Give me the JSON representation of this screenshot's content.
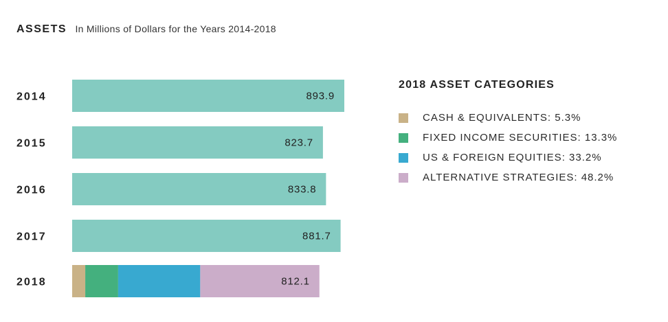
{
  "chart_data": {
    "type": "bar",
    "orientation": "horizontal",
    "title": "ASSETS",
    "subtitle": "In Millions of Dollars for the Years 2014-2018",
    "categories": [
      "2014",
      "2015",
      "2016",
      "2017",
      "2018"
    ],
    "values": [
      893.9,
      823.7,
      833.8,
      881.7,
      812.1
    ],
    "value_labels": [
      "893.9",
      "823.7",
      "833.8",
      "881.7",
      "812.1"
    ],
    "bar_color": "#84cbc1",
    "stacked_category": "2018",
    "stack_segments": [
      {
        "name": "CASH & EQUIVALENTS",
        "percent": 5.3,
        "color": "#c9b287"
      },
      {
        "name": "FIXED INCOME SECURITIES",
        "percent": 13.3,
        "color": "#44b07e"
      },
      {
        "name": "US & FOREIGN EQUITIES",
        "percent": 33.2,
        "color": "#38a9d0"
      },
      {
        "name": "ALTERNATIVE STRATEGIES",
        "percent": 48.2,
        "color": "#cbadc9"
      }
    ],
    "legend_placement": "right",
    "grid": false
  },
  "legend": {
    "title": "2018 ASSET CATEGORIES",
    "items": [
      {
        "label": "CASH & EQUIVALENTS: 5.3%",
        "color": "#c9b287"
      },
      {
        "label": "FIXED INCOME SECURITIES: 13.3%",
        "color": "#44b07e"
      },
      {
        "label": "US & FOREIGN EQUITIES: 33.2%",
        "color": "#38a9d0"
      },
      {
        "label": "ALTERNATIVE STRATEGIES: 48.2%",
        "color": "#cbadc9"
      }
    ]
  }
}
